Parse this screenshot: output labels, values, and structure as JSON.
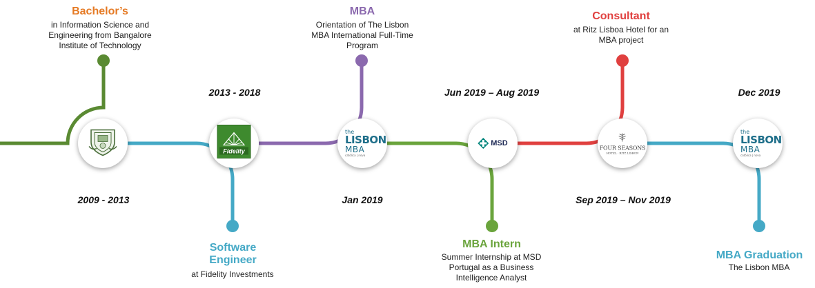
{
  "colors": {
    "orange": "#e57a24",
    "green": "#5a8a32",
    "teal": "#45a9c6",
    "purple": "#8b69ae",
    "intern_green": "#6aa43c",
    "red": "#e0403f",
    "dark": "#111111"
  },
  "milestones": [
    {
      "id": "bachelors",
      "title": "Bachelor’s",
      "description": "in Information Science and Engineering from Bangalore Institute of Technology",
      "date": "2009 - 2013",
      "logo": "university-seal-icon"
    },
    {
      "id": "software_engineer",
      "title": "Software Engineer",
      "description": "at Fidelity Investments",
      "date": "2013 - 2018",
      "logo": "fidelity-logo-icon",
      "logo_text": "Fidelity"
    },
    {
      "id": "mba",
      "title": "MBA",
      "description": "Orientation of The Lisbon MBA International Full-Time Program",
      "date": "Jan 2019",
      "logo": "lisbon-mba-logo"
    },
    {
      "id": "mba_intern",
      "title": "MBA Intern",
      "description": "Summer Internship at MSD Portugal as a Business Intelligence Analyst",
      "date": "Jun 2019 – Aug 2019",
      "logo": "msd-logo",
      "logo_text": "MSD"
    },
    {
      "id": "consultant",
      "title": "Consultant",
      "description": "at Ritz Lisboa Hotel for an MBA project",
      "date": "Sep 2019 – Nov 2019",
      "logo": "four-seasons-logo",
      "logo_text": "FOUR SEASONS",
      "logo_sub": "HOTEL · RITZ LISBON"
    },
    {
      "id": "graduation",
      "title": "MBA Graduation",
      "description": "The Lisbon MBA",
      "date": "Dec 2019",
      "logo": "lisbon-mba-logo"
    }
  ],
  "lisbon_logo": {
    "the": "the",
    "lisbon": "LISBON",
    "mba": "MBA",
    "sub": "católica | nova"
  }
}
